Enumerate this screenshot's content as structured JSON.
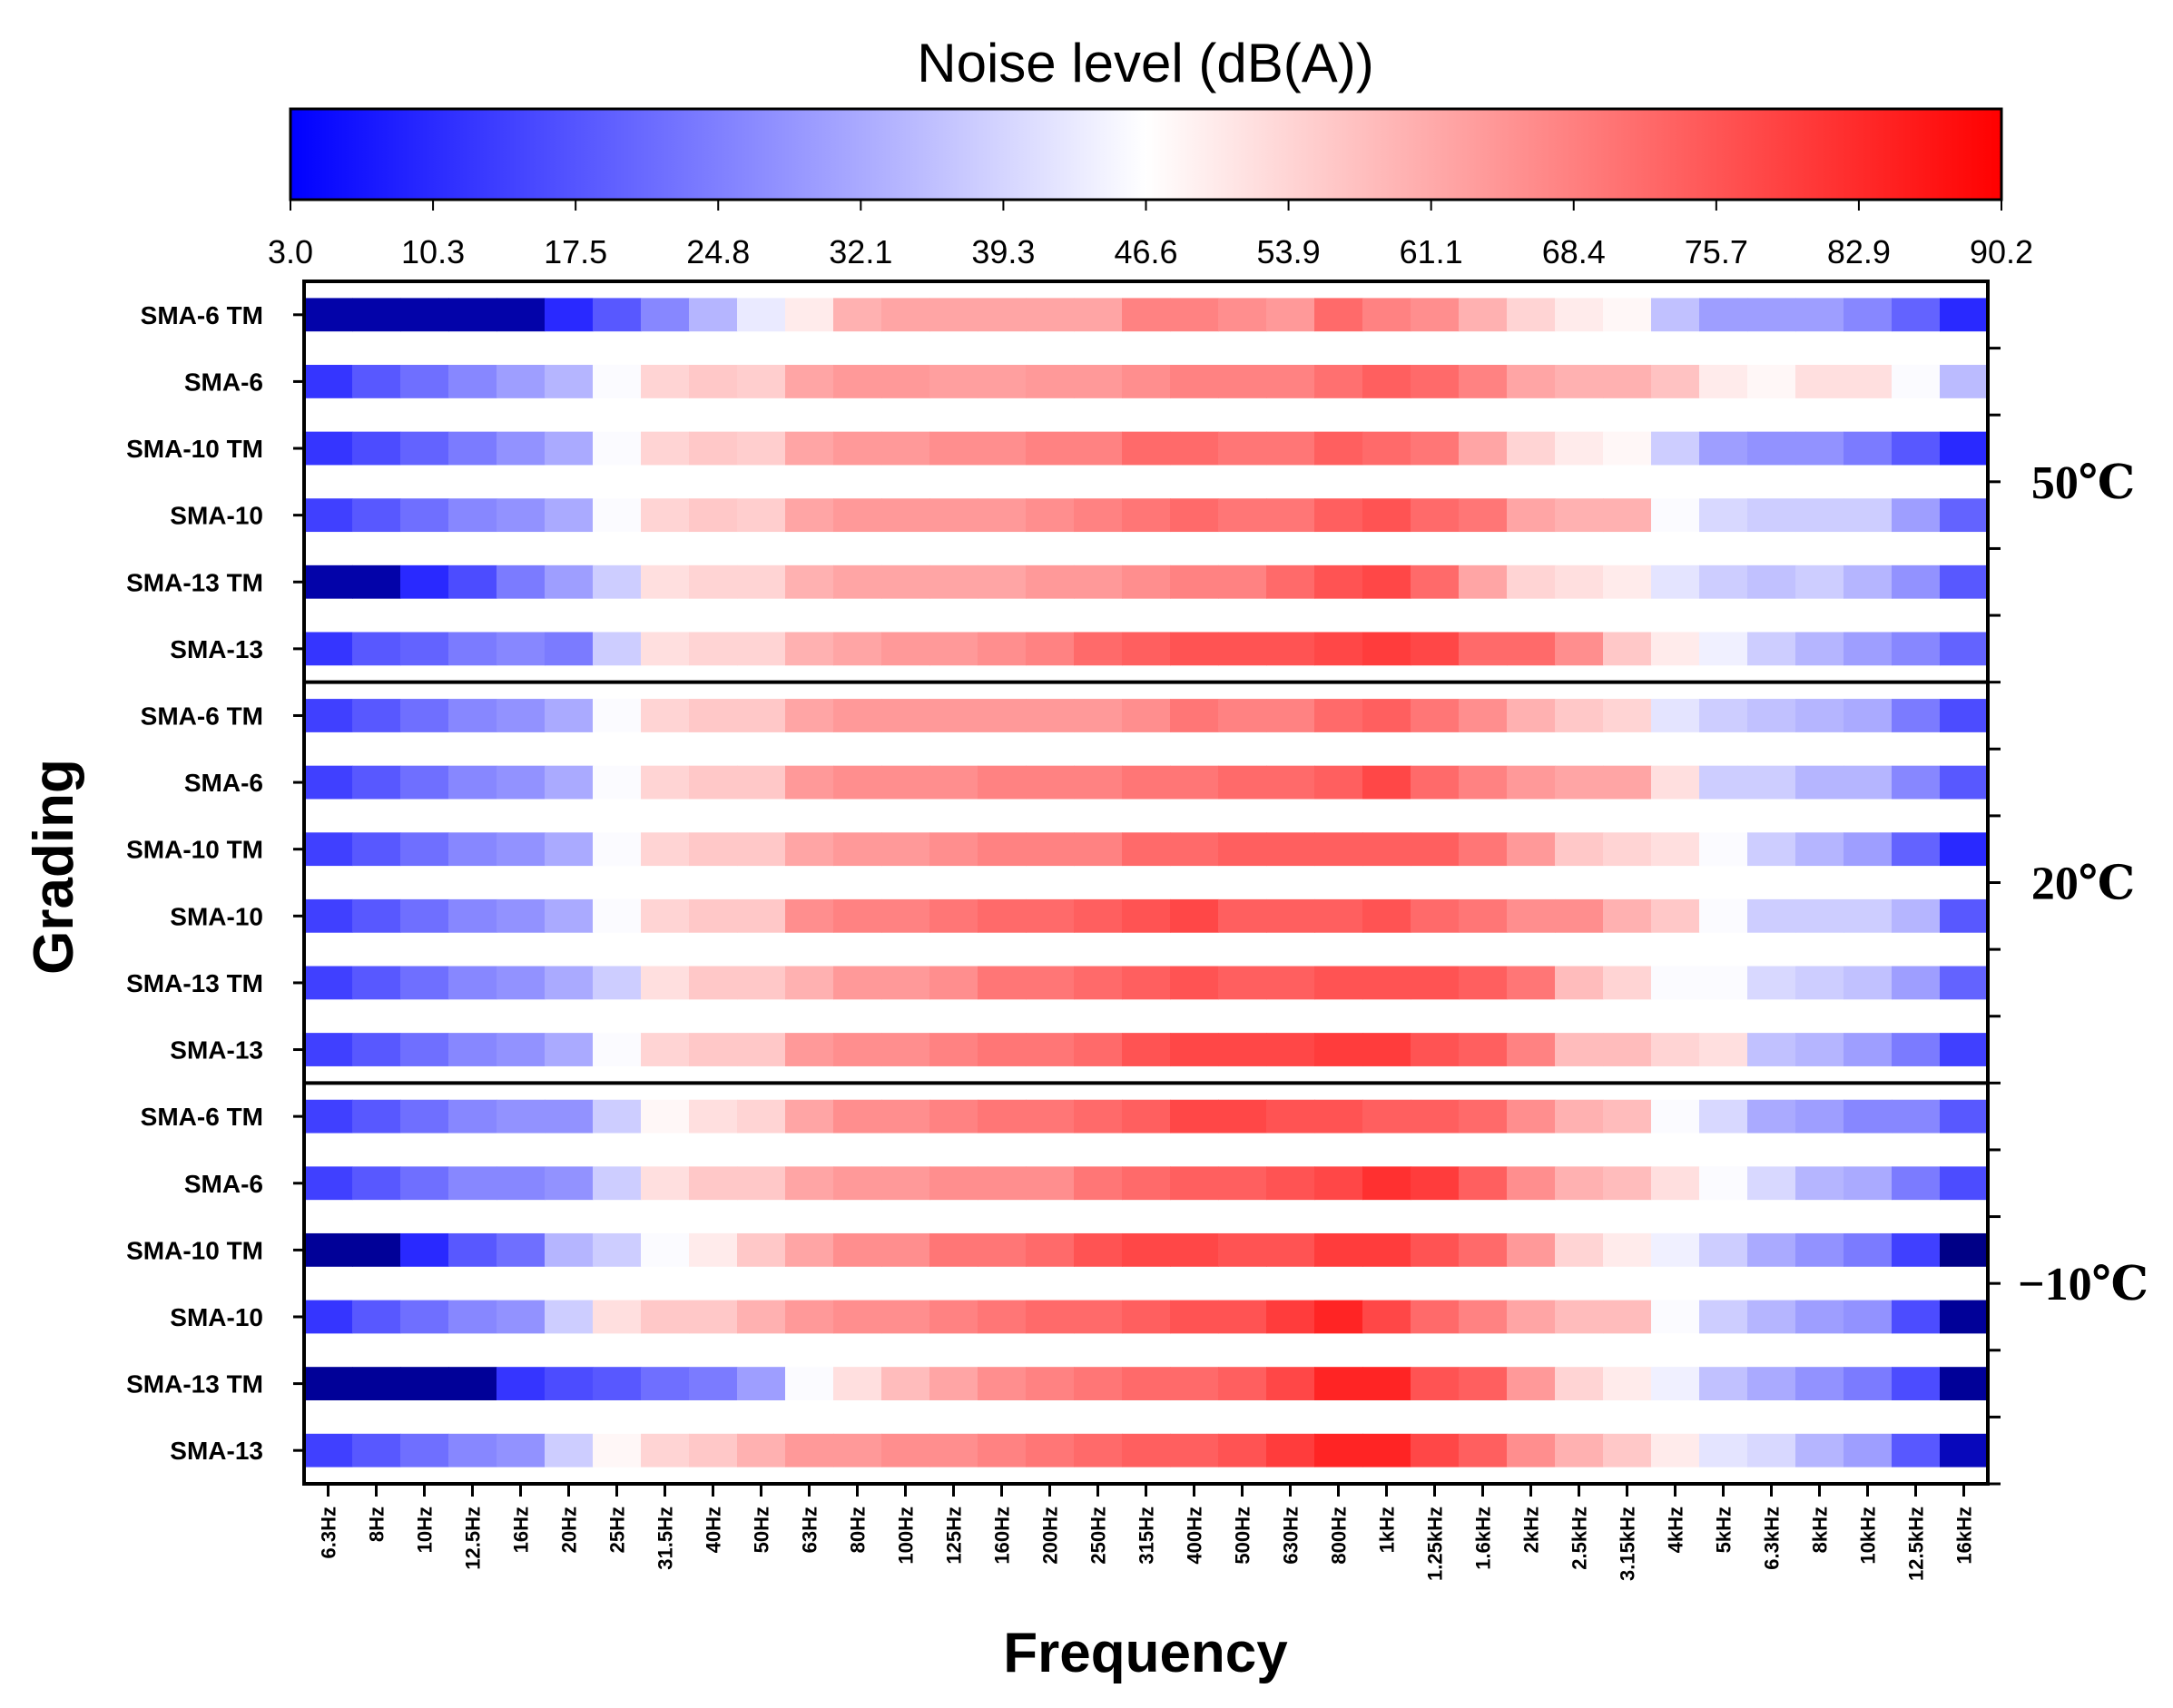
{
  "chart_data": {
    "type": "heatmap",
    "colorbar": {
      "title": "Noise level (dB(A))",
      "min": 3.0,
      "max": 90.2,
      "ticks": [
        "3.0",
        "10.3",
        "17.5",
        "24.8",
        "32.1",
        "39.3",
        "46.6",
        "53.9",
        "61.1",
        "68.4",
        "75.7",
        "82.9",
        "90.2"
      ],
      "colors": [
        "#0000ff",
        "#ffffff",
        "#ff0000"
      ]
    },
    "xlabel": "Frequency",
    "ylabel": "Grading",
    "frequencies": [
      "6.3Hz",
      "8Hz",
      "10Hz",
      "12.5Hz",
      "16Hz",
      "20Hz",
      "25Hz",
      "31.5Hz",
      "40Hz",
      "50Hz",
      "63Hz",
      "80Hz",
      "100Hz",
      "125Hz",
      "160Hz",
      "200Hz",
      "250Hz",
      "315Hz",
      "400Hz",
      "500Hz",
      "630Hz",
      "800Hz",
      "1kHz",
      "1.25kHz",
      "1.6kHz",
      "2kHz",
      "2.5kHz",
      "3.15kHz",
      "4kHz",
      "5kHz",
      "6.3kHz",
      "8kHz",
      "10kHz",
      "12.5kHz",
      "16kHz"
    ],
    "groups": [
      {
        "label": "50℃",
        "rows": [
          {
            "name": "SMA-6 TM",
            "values": [
              5,
              5,
              5,
              5,
              5,
              10,
              18,
              26,
              34,
              43,
              50,
              60,
              62,
              62,
              62,
              62,
              62,
              68,
              68,
              66,
              64,
              72,
              68,
              66,
              60,
              54,
              50,
              48,
              36,
              30,
              30,
              30,
              26,
              20,
              10
            ]
          },
          {
            "name": "SMA-6",
            "values": [
              12,
              18,
              22,
              26,
              30,
              34,
              46,
              54,
              56,
              55,
              62,
              64,
              64,
              63,
              63,
              64,
              64,
              66,
              68,
              68,
              68,
              71,
              74,
              72,
              68,
              62,
              60,
              60,
              57,
              50,
              48,
              52,
              52,
              46,
              35
            ]
          },
          {
            "name": "SMA-10 TM",
            "values": [
              12,
              16,
              20,
              24,
              28,
              32,
              46,
              54,
              56,
              55,
              62,
              64,
              64,
              66,
              66,
              68,
              68,
              72,
              72,
              70,
              70,
              74,
              72,
              70,
              62,
              54,
              50,
              48,
              38,
              30,
              28,
              28,
              24,
              18,
              10
            ]
          },
          {
            "name": "SMA-10",
            "values": [
              14,
              18,
              22,
              26,
              28,
              32,
              46,
              54,
              56,
              55,
              62,
              64,
              64,
              64,
              64,
              66,
              68,
              70,
              72,
              70,
              70,
              74,
              76,
              72,
              70,
              62,
              60,
              60,
              46,
              40,
              38,
              38,
              38,
              30,
              20
            ]
          },
          {
            "name": "SMA-13 TM",
            "values": [
              5,
              5,
              10,
              16,
              24,
              30,
              38,
              52,
              54,
              54,
              60,
              62,
              62,
              62,
              62,
              64,
              64,
              66,
              68,
              68,
              72,
              76,
              78,
              72,
              62,
              54,
              52,
              50,
              42,
              38,
              36,
              38,
              34,
              28,
              18
            ]
          },
          {
            "name": "SMA-13",
            "values": [
              12,
              18,
              20,
              24,
              26,
              24,
              38,
              52,
              54,
              54,
              60,
              62,
              64,
              64,
              66,
              68,
              72,
              74,
              76,
              76,
              76,
              78,
              80,
              78,
              72,
              72,
              66,
              56,
              50,
              44,
              38,
              34,
              30,
              26,
              20
            ]
          }
        ]
      },
      {
        "label": "20℃",
        "rows": [
          {
            "name": "SMA-6 TM",
            "values": [
              14,
              18,
              22,
              26,
              28,
              32,
              46,
              54,
              56,
              56,
              62,
              64,
              64,
              64,
              64,
              64,
              64,
              66,
              70,
              68,
              68,
              72,
              74,
              70,
              66,
              60,
              56,
              54,
              42,
              38,
              36,
              34,
              32,
              24,
              16
            ]
          },
          {
            "name": "SMA-6",
            "values": [
              14,
              18,
              22,
              26,
              28,
              32,
              46,
              54,
              56,
              56,
              64,
              66,
              66,
              66,
              68,
              68,
              68,
              70,
              70,
              72,
              72,
              74,
              78,
              72,
              68,
              64,
              62,
              62,
              52,
              38,
              38,
              34,
              34,
              26,
              18
            ]
          },
          {
            "name": "SMA-10 TM",
            "values": [
              14,
              18,
              22,
              26,
              28,
              32,
              46,
              54,
              56,
              56,
              62,
              64,
              64,
              66,
              68,
              68,
              68,
              72,
              72,
              74,
              74,
              74,
              74,
              74,
              70,
              64,
              56,
              54,
              52,
              46,
              38,
              34,
              30,
              20,
              10
            ]
          },
          {
            "name": "SMA-10",
            "values": [
              14,
              18,
              22,
              26,
              28,
              32,
              46,
              54,
              56,
              56,
              66,
              68,
              68,
              70,
              72,
              72,
              74,
              76,
              78,
              74,
              74,
              74,
              76,
              72,
              70,
              66,
              66,
              60,
              56,
              46,
              38,
              38,
              38,
              34,
              18
            ]
          },
          {
            "name": "SMA-13 TM",
            "values": [
              14,
              18,
              22,
              26,
              28,
              32,
              38,
              52,
              56,
              56,
              60,
              64,
              64,
              66,
              70,
              70,
              72,
              74,
              76,
              74,
              74,
              76,
              76,
              76,
              74,
              70,
              58,
              54,
              46,
              46,
              40,
              38,
              36,
              30,
              20
            ]
          },
          {
            "name": "SMA-13",
            "values": [
              14,
              18,
              22,
              26,
              28,
              32,
              46,
              54,
              56,
              56,
              64,
              66,
              66,
              68,
              70,
              70,
              72,
              76,
              78,
              78,
              78,
              80,
              80,
              76,
              74,
              68,
              58,
              58,
              54,
              52,
              36,
              34,
              30,
              24,
              14
            ]
          }
        ]
      },
      {
        "label": "−10℃",
        "rows": [
          {
            "name": "SMA-6 TM",
            "values": [
              14,
              18,
              22,
              26,
              28,
              28,
              38,
              48,
              52,
              54,
              62,
              66,
              66,
              68,
              70,
              70,
              72,
              74,
              78,
              78,
              76,
              76,
              74,
              74,
              72,
              66,
              60,
              58,
              46,
              40,
              32,
              30,
              26,
              26,
              18
            ]
          },
          {
            "name": "SMA-6",
            "values": [
              14,
              18,
              22,
              26,
              26,
              28,
              38,
              52,
              56,
              56,
              62,
              64,
              64,
              66,
              66,
              66,
              70,
              72,
              74,
              74,
              76,
              78,
              82,
              80,
              74,
              66,
              60,
              58,
              52,
              46,
              40,
              34,
              32,
              24,
              16
            ]
          },
          {
            "name": "SMA-10 TM",
            "values": [
              4,
              4,
              10,
              18,
              22,
              34,
              38,
              46,
              50,
              56,
              62,
              66,
              66,
              70,
              70,
              72,
              76,
              78,
              78,
              76,
              76,
              80,
              80,
              76,
              72,
              64,
              54,
              50,
              44,
              38,
              32,
              28,
              24,
              14,
              3
            ]
          },
          {
            "name": "SMA-10",
            "values": [
              12,
              18,
              22,
              26,
              28,
              38,
              52,
              56,
              56,
              60,
              64,
              66,
              66,
              68,
              70,
              72,
              72,
              74,
              76,
              76,
              80,
              84,
              78,
              72,
              68,
              62,
              58,
              58,
              46,
              38,
              34,
              30,
              28,
              16,
              4
            ]
          },
          {
            "name": "SMA-13 TM",
            "values": [
              4,
              4,
              4,
              4,
              12,
              16,
              18,
              22,
              24,
              30,
              46,
              52,
              58,
              62,
              66,
              68,
              70,
              72,
              72,
              74,
              78,
              84,
              84,
              76,
              74,
              64,
              54,
              50,
              44,
              36,
              32,
              28,
              24,
              16,
              4
            ]
          },
          {
            "name": "SMA-13",
            "values": [
              14,
              18,
              22,
              26,
              28,
              38,
              48,
              54,
              56,
              60,
              64,
              64,
              66,
              66,
              68,
              70,
              72,
              74,
              74,
              76,
              80,
              84,
              84,
              78,
              74,
              66,
              60,
              56,
              50,
              42,
              40,
              34,
              30,
              18,
              6
            ]
          }
        ]
      }
    ]
  }
}
